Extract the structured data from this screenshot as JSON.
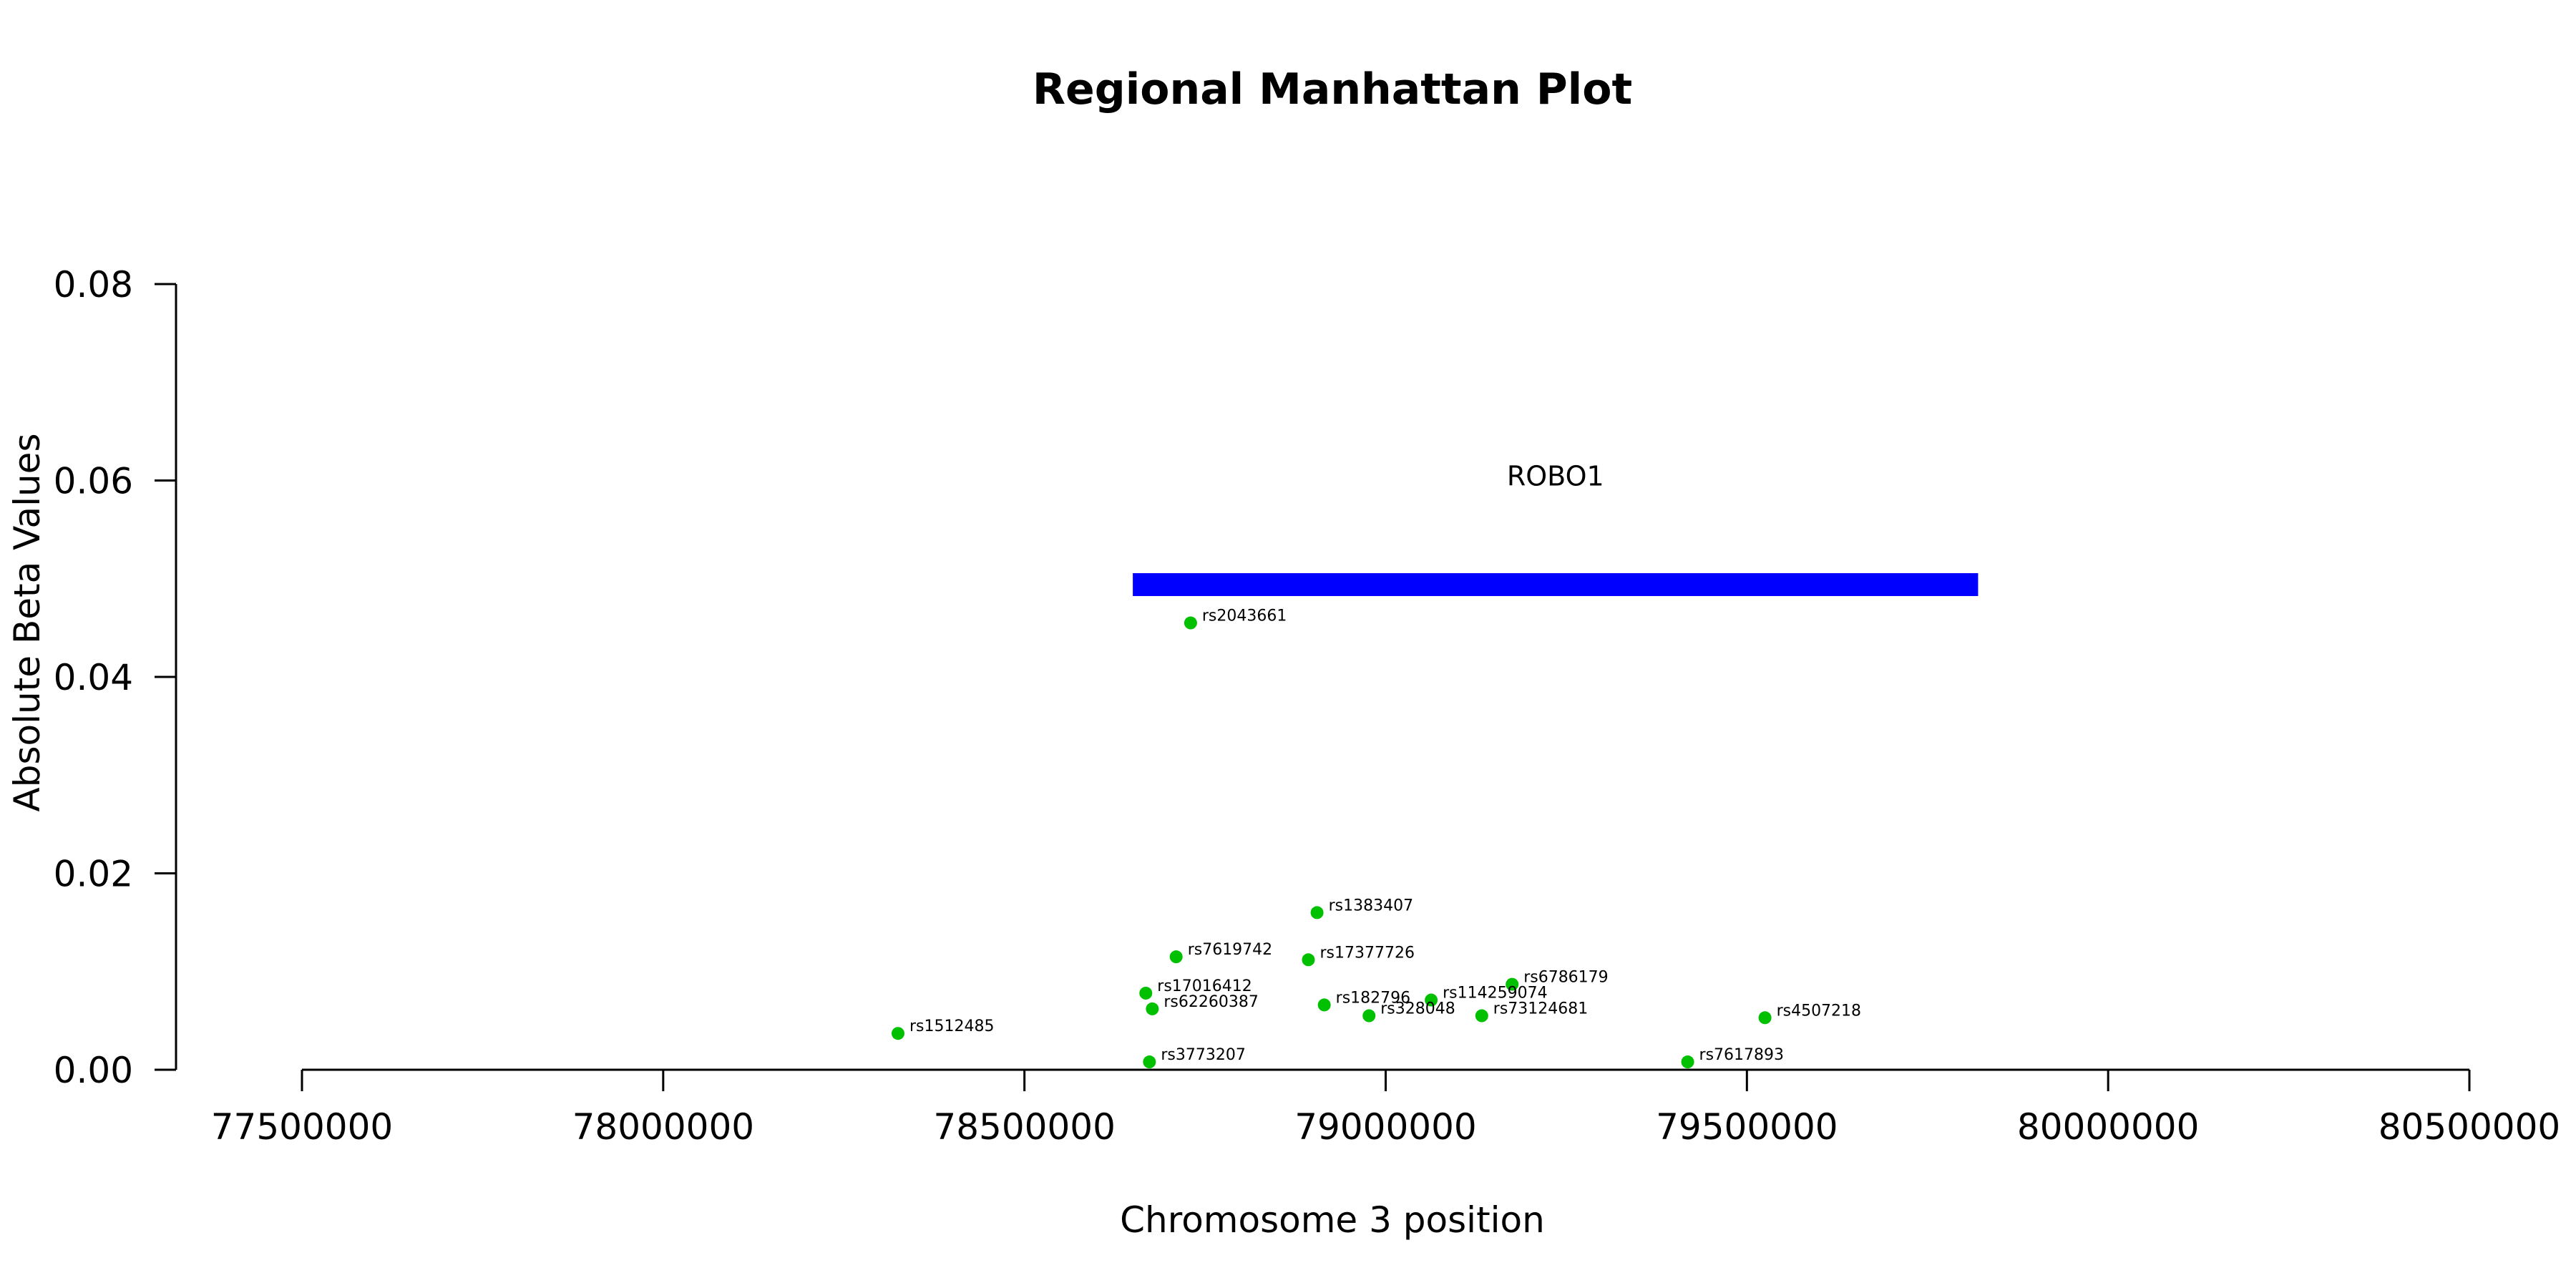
{
  "chart_data": {
    "type": "scatter",
    "title": "Regional Manhattan Plot",
    "xlabel": "Chromosome 3 position",
    "ylabel": "Absolute Beta Values",
    "xlim": [
      77500000,
      80500000
    ],
    "ylim": [
      0,
      0.08
    ],
    "x_ticks": [
      77500000,
      78000000,
      78500000,
      79000000,
      79500000,
      80000000,
      80500000
    ],
    "y_ticks": [
      0.0,
      0.02,
      0.04,
      0.06,
      0.08
    ],
    "x_tick_labels": [
      "77500000",
      "78000000",
      "78500000",
      "79000000",
      "79500000",
      "80000000",
      "80500000"
    ],
    "y_tick_labels": [
      "0.00",
      "0.02",
      "0.04",
      "0.06",
      "0.08"
    ],
    "point_color": "#00C000",
    "gene": {
      "name": "ROBO1",
      "start": 78650000,
      "end": 79820000,
      "y": 0.0494,
      "color": "#0000FF"
    },
    "points": [
      {
        "label": "rs2043661",
        "x": 78730000,
        "y": 0.0455
      },
      {
        "label": "rs1383407",
        "x": 78905000,
        "y": 0.016
      },
      {
        "label": "rs7619742",
        "x": 78710000,
        "y": 0.0115
      },
      {
        "label": "rs17377726",
        "x": 78893000,
        "y": 0.0112
      },
      {
        "label": "rs6786179",
        "x": 79175000,
        "y": 0.0087
      },
      {
        "label": "rs17016412",
        "x": 78668000,
        "y": 0.0078
      },
      {
        "label": "rs114259074",
        "x": 79063000,
        "y": 0.0071
      },
      {
        "label": "rs182796",
        "x": 78915000,
        "y": 0.0066
      },
      {
        "label": "rs62260387",
        "x": 78677000,
        "y": 0.0062
      },
      {
        "label": "rs328048",
        "x": 78977000,
        "y": 0.0055
      },
      {
        "label": "rs73124681",
        "x": 79133000,
        "y": 0.0055
      },
      {
        "label": "rs4507218",
        "x": 79525000,
        "y": 0.0053
      },
      {
        "label": "rs1512485",
        "x": 78325000,
        "y": 0.0037
      },
      {
        "label": "rs3773207",
        "x": 78673000,
        "y": 0.0008
      },
      {
        "label": "rs7617893",
        "x": 79418000,
        "y": 0.0008
      }
    ]
  }
}
